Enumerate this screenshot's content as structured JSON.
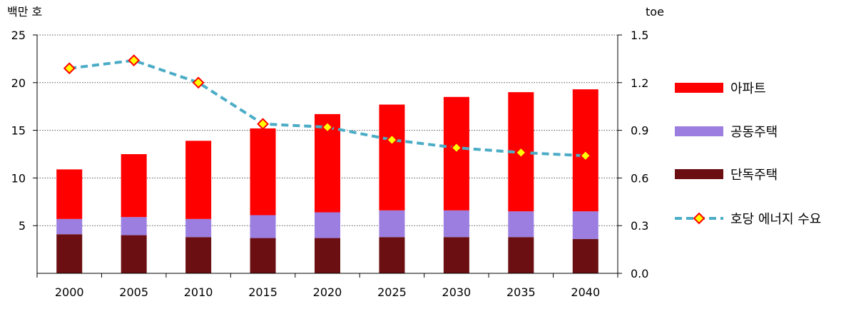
{
  "chart_data": {
    "type": "bar",
    "stacked": true,
    "left_unit": "백만 호",
    "right_unit": "toe",
    "categories": [
      "2000",
      "2005",
      "2010",
      "2015",
      "2020",
      "2025",
      "2030",
      "2035",
      "2040"
    ],
    "ylim_left": [
      0,
      25
    ],
    "ylim_right": [
      0,
      1.5
    ],
    "yticks_left": [
      "5",
      "10",
      "15",
      "20",
      "25"
    ],
    "yticks_right": [
      "0.0",
      "0.3",
      "0.6",
      "0.9",
      "1.2",
      "1.5"
    ],
    "grid": true,
    "legend_position": "right",
    "series": [
      {
        "name": "단독주택",
        "color": "#6b0f12",
        "values": [
          4.1,
          4.0,
          3.8,
          3.7,
          3.7,
          3.8,
          3.8,
          3.8,
          3.6
        ]
      },
      {
        "name": "공동주택",
        "color": "#9b7ee0",
        "values": [
          1.6,
          1.9,
          1.9,
          2.4,
          2.7,
          2.8,
          2.8,
          2.7,
          2.9
        ]
      },
      {
        "name": "아파트",
        "color": "#ff0000",
        "values": [
          5.2,
          6.6,
          8.2,
          9.1,
          10.3,
          11.1,
          11.9,
          12.5,
          12.8
        ]
      }
    ],
    "line_series": {
      "name": "호당 에너지 수요",
      "axis": "right",
      "color": "#4bacc6",
      "marker_fill": "#ffff00",
      "marker_edge": "#ff0000",
      "values": [
        1.29,
        1.34,
        1.2,
        0.94,
        0.92,
        0.84,
        0.79,
        0.76,
        0.74
      ]
    }
  }
}
